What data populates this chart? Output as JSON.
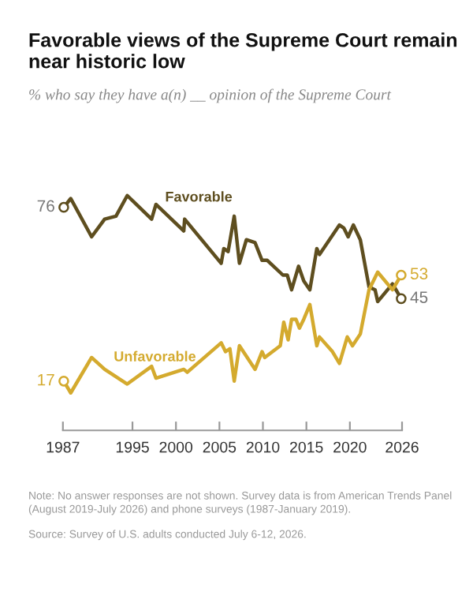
{
  "chart_data": {
    "type": "line",
    "title": "Favorable views of the Supreme Court remain near historic low",
    "subtitle": "% who say they have a(n) __ opinion of the Supreme Court",
    "xlim": [
      1987,
      2026
    ],
    "xticks": [
      1987,
      1995,
      2000,
      2005,
      2010,
      2015,
      2020,
      2026
    ],
    "tick_labels": "x",
    "grid": false,
    "legend": false,
    "series": [
      {
        "name": "Favorable",
        "color": "#5e4e1f",
        "x": [
          1987.1,
          1987.9,
          1990.3,
          1991.8,
          1993.1,
          1994.4,
          1997.2,
          1997.7,
          2000.9,
          2001.0,
          2005.2,
          2005.5,
          2006.0,
          2006.7,
          2007.3,
          2008.1,
          2009.1,
          2009.9,
          2010.5,
          2012.3,
          2012.8,
          2013.3,
          2014.1,
          2014.7,
          2015.4,
          2016.2,
          2016.5,
          2018.8,
          2019.3,
          2019.8,
          2020.4,
          2021.2,
          2022.2,
          2022.9,
          2023.2,
          2024.9,
          2025.9
        ],
        "values": [
          76,
          79,
          66,
          72,
          73,
          80,
          72,
          77,
          68,
          72,
          57,
          62,
          61,
          73,
          57,
          65,
          64,
          58,
          58,
          53,
          53,
          48,
          56,
          51,
          48,
          62,
          60,
          70,
          69,
          66,
          70,
          65,
          49,
          48,
          44,
          50,
          45
        ],
        "value_labels": [
          "76",
          null,
          null,
          null,
          null,
          null,
          null,
          null,
          null,
          null,
          null,
          null,
          null,
          null,
          null,
          null,
          null,
          null,
          null,
          null,
          null,
          null,
          null,
          null,
          null,
          null,
          null,
          null,
          null,
          null,
          null,
          null,
          null,
          null,
          null,
          null,
          "45"
        ]
      },
      {
        "name": "Unfavorable",
        "color": "#d4aa2e",
        "x": [
          1987.1,
          1987.9,
          1990.3,
          1991.8,
          1994.4,
          1997.2,
          1997.7,
          2000.9,
          2001.3,
          2005.2,
          2005.7,
          2006.2,
          2006.7,
          2007.3,
          2009.1,
          2009.9,
          2010.2,
          2012.0,
          2012.4,
          2012.9,
          2013.3,
          2013.8,
          2014.2,
          2014.7,
          2015.4,
          2016.2,
          2016.5,
          2018.0,
          2018.8,
          2019.7,
          2020.3,
          2021.2,
          2022.2,
          2023.2,
          2024.9,
          2025.9
        ],
        "values": [
          17,
          13,
          25,
          21,
          16,
          22,
          18,
          21,
          20,
          30,
          27,
          28,
          17,
          29,
          21,
          27,
          25,
          29,
          37,
          31,
          38,
          38,
          35,
          38,
          43,
          29,
          32,
          27,
          23,
          32,
          29,
          33,
          48,
          54,
          48,
          53
        ],
        "value_labels": [
          "17",
          null,
          null,
          null,
          null,
          null,
          null,
          null,
          null,
          null,
          null,
          null,
          null,
          null,
          null,
          null,
          null,
          null,
          null,
          null,
          null,
          null,
          null,
          null,
          null,
          null,
          null,
          null,
          null,
          null,
          null,
          null,
          null,
          null,
          null,
          "53"
        ]
      }
    ],
    "annotations": [
      "Note: No answer responses are not shown. Survey data is from American Trends Panel (August 2019-July 2026) and phone surveys (1987-January 2019).",
      "Source: Survey of U.S. adults conducted July 6-12, 2026."
    ]
  }
}
